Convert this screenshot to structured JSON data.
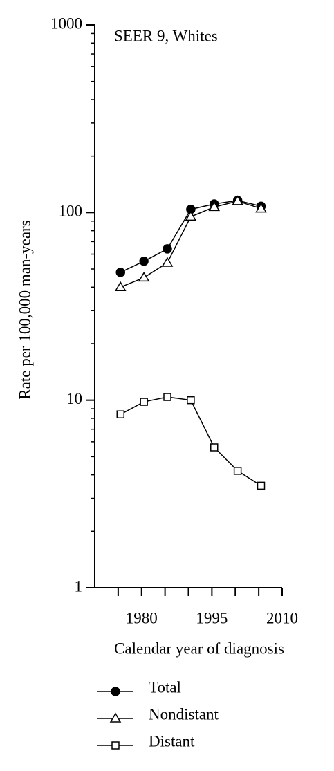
{
  "chart_data": {
    "type": "line",
    "title": "SEER 9, Whites",
    "x_label": "Calendar year of diagnosis",
    "y_label": "Rate per 100,000 man-years",
    "x": [
      1975.5,
      1980.5,
      1985.5,
      1990.5,
      1995.5,
      2000.5,
      2005.5
    ],
    "series": [
      {
        "name": "Total",
        "color": "#000000",
        "marker": "filled-circle",
        "values": [
          48,
          55,
          64,
          104,
          111,
          116,
          108
        ]
      },
      {
        "name": "Nondistant",
        "color": "#000000",
        "marker": "open-triangle",
        "values": [
          40,
          45,
          54,
          95,
          107,
          115,
          105
        ]
      },
      {
        "name": "Distant",
        "color": "#000000",
        "marker": "open-square",
        "values": [
          8.4,
          9.8,
          10.4,
          10,
          5.6,
          4.2,
          3.5
        ]
      }
    ],
    "xlim": [
      1970,
      2010
    ],
    "xticks": [
      1980,
      1995,
      2010
    ],
    "xminor_ticks": [
      1975,
      1985,
      1990,
      2000,
      2005
    ],
    "ylim": [
      1,
      1000
    ],
    "yticks": [
      1,
      10,
      100,
      1000
    ],
    "log_scale": true,
    "yminor_ticks": [
      2,
      3,
      4,
      5,
      6,
      7,
      8,
      9,
      20,
      30,
      40,
      50,
      60,
      70,
      80,
      90,
      200,
      300,
      400,
      500,
      600,
      700,
      800,
      900
    ],
    "grid": false,
    "legend": "bottom"
  }
}
